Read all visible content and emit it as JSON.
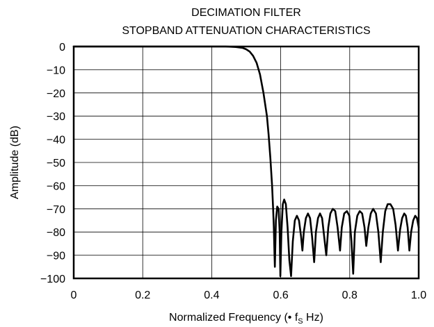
{
  "chart_data": {
    "type": "line",
    "title": "DECIMATION FILTER",
    "subtitle": "STOPBAND ATTENUATION CHARACTERISTICS",
    "xlabel": {
      "prefix": "Normalized Frequency (• f",
      "subscript": "S",
      "suffix": " Hz)"
    },
    "ylabel": "Amplitude (dB)",
    "xlim": [
      0,
      1.0
    ],
    "ylim": [
      -100,
      0
    ],
    "x_ticks": [
      0,
      0.2,
      0.4,
      0.6,
      0.8,
      1.0
    ],
    "x_tick_labels": [
      "0",
      "0.2",
      "0.4",
      "0.6",
      "0.8",
      "1.0"
    ],
    "y_ticks": [
      0,
      -10,
      -20,
      -30,
      -40,
      -50,
      -60,
      -70,
      -80,
      -90,
      -100
    ],
    "y_tick_labels": [
      "0",
      "−10",
      "−20",
      "−30",
      "−40",
      "−50",
      "−60",
      "−70",
      "−80",
      "−90",
      "−100"
    ],
    "grid": true,
    "line_color": "#000000",
    "series": [
      {
        "points": [
          [
            0,
            0
          ],
          [
            0.44,
            0
          ],
          [
            0.47,
            -0.2
          ],
          [
            0.49,
            -0.6
          ],
          [
            0.5,
            -1.2
          ],
          [
            0.51,
            -2.2
          ],
          [
            0.52,
            -4
          ],
          [
            0.53,
            -7
          ],
          [
            0.54,
            -12
          ],
          [
            0.55,
            -20
          ],
          [
            0.56,
            -30
          ],
          [
            0.565,
            -38
          ],
          [
            0.57,
            -48
          ],
          [
            0.575,
            -60
          ],
          [
            0.578,
            -70
          ],
          [
            0.58,
            -78
          ],
          [
            0.582,
            -90
          ],
          [
            0.583,
            -95
          ],
          [
            0.586,
            -75
          ],
          [
            0.59,
            -69
          ],
          [
            0.594,
            -70
          ],
          [
            0.597,
            -80
          ],
          [
            0.599,
            -99
          ],
          [
            0.602,
            -80
          ],
          [
            0.606,
            -68
          ],
          [
            0.61,
            -66
          ],
          [
            0.615,
            -68
          ],
          [
            0.62,
            -78
          ],
          [
            0.625,
            -92
          ],
          [
            0.63,
            -99
          ],
          [
            0.635,
            -84
          ],
          [
            0.641,
            -75
          ],
          [
            0.647,
            -73
          ],
          [
            0.653,
            -75
          ],
          [
            0.659,
            -82
          ],
          [
            0.663,
            -88
          ],
          [
            0.667,
            -80
          ],
          [
            0.673,
            -74
          ],
          [
            0.679,
            -72
          ],
          [
            0.685,
            -74
          ],
          [
            0.691,
            -82
          ],
          [
            0.697,
            -93
          ],
          [
            0.702,
            -80
          ],
          [
            0.708,
            -74
          ],
          [
            0.714,
            -72
          ],
          [
            0.72,
            -74
          ],
          [
            0.726,
            -82
          ],
          [
            0.732,
            -90
          ],
          [
            0.738,
            -78
          ],
          [
            0.744,
            -72
          ],
          [
            0.751,
            -70
          ],
          [
            0.758,
            -71
          ],
          [
            0.765,
            -78
          ],
          [
            0.772,
            -88
          ],
          [
            0.777,
            -78
          ],
          [
            0.784,
            -72
          ],
          [
            0.792,
            -71
          ],
          [
            0.799,
            -73
          ],
          [
            0.805,
            -84
          ],
          [
            0.81,
            -98
          ],
          [
            0.815,
            -80
          ],
          [
            0.822,
            -73
          ],
          [
            0.829,
            -71
          ],
          [
            0.836,
            -72
          ],
          [
            0.843,
            -78
          ],
          [
            0.848,
            -86
          ],
          [
            0.854,
            -78
          ],
          [
            0.861,
            -72
          ],
          [
            0.868,
            -70
          ],
          [
            0.876,
            -72
          ],
          [
            0.883,
            -80
          ],
          [
            0.89,
            -93
          ],
          [
            0.896,
            -80
          ],
          [
            0.903,
            -71
          ],
          [
            0.91,
            -68
          ],
          [
            0.918,
            -68
          ],
          [
            0.926,
            -70
          ],
          [
            0.933,
            -77
          ],
          [
            0.94,
            -88
          ],
          [
            0.946,
            -79
          ],
          [
            0.952,
            -74
          ],
          [
            0.958,
            -72
          ],
          [
            0.963,
            -73
          ],
          [
            0.968,
            -78
          ],
          [
            0.973,
            -88
          ],
          [
            0.978,
            -80
          ],
          [
            0.984,
            -75
          ],
          [
            0.99,
            -73
          ],
          [
            0.995,
            -74
          ],
          [
            1.0,
            -78
          ]
        ]
      }
    ]
  }
}
